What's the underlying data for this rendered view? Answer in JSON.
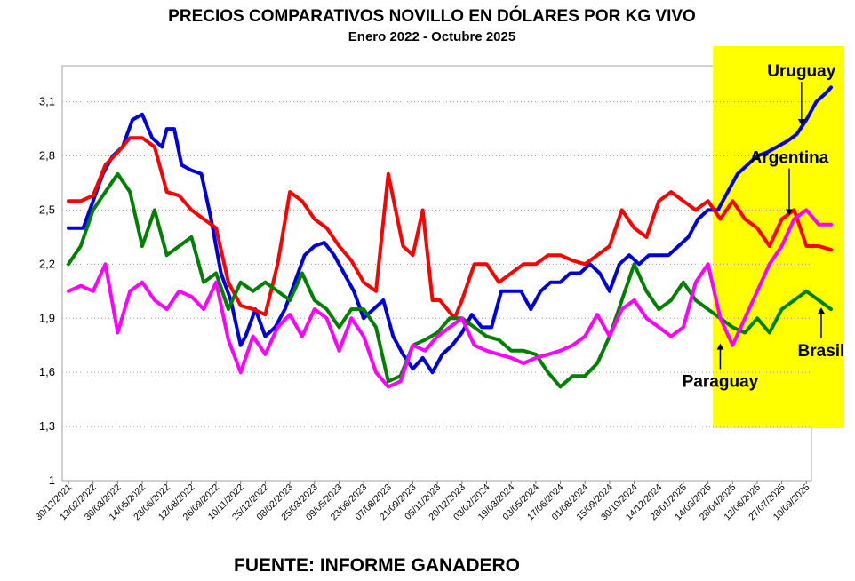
{
  "chart_data": {
    "type": "line",
    "title": "PRECIOS COMPARATIVOS NOVILLO EN DÓLARES POR KG  VIVO",
    "subtitle": "Enero  2022 -  Octubre 2025",
    "source": "FUENTE:  INFORME GANADERO",
    "ylim": [
      1.0,
      3.3
    ],
    "y_ticks": [
      "1",
      "1,3",
      "1,6",
      "1,9",
      "2,2",
      "2,5",
      "2,8",
      "3,1"
    ],
    "y_tick_values": [
      1.0,
      1.3,
      1.6,
      1.9,
      2.2,
      2.5,
      2.8,
      3.1
    ],
    "x_tick_labels": [
      "30/12/2021",
      "13/02/2022",
      "30/03/2022",
      "14/05/2022",
      "28/06/2022",
      "12/08/2022",
      "26/09/2022",
      "10/11/2022",
      "25/12/2022",
      "08/02/2023",
      "25/03/2023",
      "09/05/2023",
      "23/06/2023",
      "07/08/2023",
      "21/09/2023",
      "05/11/2023",
      "20/12/2023",
      "03/02/2024",
      "19/03/2024",
      "03/05/2024",
      "17/06/2024",
      "01/08/2024",
      "15/09/2024",
      "30/10/2024",
      "14/12/2024",
      "28/01/2025",
      "14/03/2025",
      "28/04/2025",
      "12/06/2025",
      "27/07/2025",
      "10/09/2025"
    ],
    "grid": true,
    "highlight_region": {
      "x_from": 26.2,
      "x_to": 31.0,
      "color": "#ffff00"
    },
    "series": [
      {
        "name": "Uruguay",
        "color": "#0000dd",
        "x": [
          0,
          0.6,
          1,
          1.4,
          1.8,
          2.2,
          2.6,
          3.0,
          3.4,
          3.8,
          4.0,
          4.3,
          4.6,
          5.0,
          5.4,
          5.8,
          6.2,
          6.6,
          7.0,
          7.2,
          7.6,
          8.0,
          8.4,
          8.8,
          9.2,
          9.6,
          10.0,
          10.4,
          10.8,
          11.2,
          11.6,
          12.0,
          12.4,
          12.8,
          13.2,
          13.6,
          14.0,
          14.4,
          14.8,
          15.2,
          15.6,
          16.0,
          16.4,
          16.8,
          17.2,
          17.6,
          18.0,
          18.4,
          18.8,
          19.2,
          19.6,
          20.0,
          20.4,
          20.8,
          21.2,
          21.6,
          22.0,
          22.4,
          22.8,
          23.2,
          23.6,
          24.0,
          24.4,
          24.8,
          25.2,
          25.6,
          26.0,
          26.4,
          26.8,
          27.2,
          27.6,
          28.0,
          28.4,
          28.8,
          29.2,
          29.6,
          30.0,
          30.4,
          30.8,
          31.0
        ],
        "y": [
          2.4,
          2.4,
          2.55,
          2.7,
          2.8,
          2.85,
          3.0,
          3.03,
          2.9,
          2.85,
          2.95,
          2.95,
          2.75,
          2.72,
          2.7,
          2.45,
          2.15,
          2.0,
          1.75,
          1.8,
          1.95,
          1.8,
          1.85,
          1.95,
          2.1,
          2.25,
          2.3,
          2.32,
          2.25,
          2.15,
          2.05,
          1.9,
          1.95,
          2.0,
          1.8,
          1.7,
          1.62,
          1.68,
          1.6,
          1.7,
          1.75,
          1.82,
          1.92,
          1.85,
          1.85,
          2.05,
          2.05,
          2.05,
          1.95,
          2.05,
          2.1,
          2.1,
          2.15,
          2.15,
          2.2,
          2.15,
          2.05,
          2.2,
          2.25,
          2.2,
          2.25,
          2.25,
          2.25,
          2.3,
          2.35,
          2.45,
          2.5,
          2.5,
          2.6,
          2.7,
          2.75,
          2.8,
          2.82,
          2.85,
          2.88,
          2.92,
          3.0,
          3.1,
          3.15,
          3.18
        ]
      },
      {
        "name": "Argentina",
        "color": "#ff0000",
        "x": [
          0,
          0.5,
          1,
          1.5,
          2.0,
          2.5,
          3.0,
          3.5,
          4.0,
          4.5,
          5.0,
          5.5,
          6.0,
          6.5,
          7.0,
          7.5,
          8.0,
          8.5,
          9.0,
          9.5,
          10.0,
          10.5,
          11.0,
          11.5,
          12.0,
          12.5,
          13.0,
          13.3,
          13.6,
          14.0,
          14.4,
          14.8,
          15.1,
          15.4,
          15.7,
          16.0,
          16.5,
          17.0,
          17.5,
          18.0,
          18.5,
          19.0,
          19.5,
          20.0,
          20.5,
          21.0,
          21.5,
          22.0,
          22.5,
          23.0,
          23.5,
          24.0,
          24.5,
          25.0,
          25.5,
          26.0,
          26.5,
          27.0,
          27.5,
          28.0,
          28.5,
          29.0,
          29.5,
          30.0,
          30.5,
          31.0
        ],
        "y": [
          2.55,
          2.55,
          2.58,
          2.75,
          2.82,
          2.9,
          2.9,
          2.85,
          2.6,
          2.58,
          2.5,
          2.45,
          2.4,
          2.1,
          1.97,
          1.95,
          1.92,
          2.2,
          2.6,
          2.55,
          2.45,
          2.4,
          2.3,
          2.22,
          2.1,
          2.05,
          2.7,
          2.5,
          2.3,
          2.25,
          2.5,
          2.0,
          2.0,
          1.95,
          1.9,
          2.0,
          2.2,
          2.2,
          2.1,
          2.15,
          2.2,
          2.2,
          2.25,
          2.25,
          2.22,
          2.2,
          2.25,
          2.3,
          2.5,
          2.4,
          2.35,
          2.55,
          2.6,
          2.55,
          2.5,
          2.55,
          2.45,
          2.55,
          2.45,
          2.4,
          2.3,
          2.45,
          2.5,
          2.3,
          2.3,
          2.28
        ]
      },
      {
        "name": "Brasil",
        "color": "#008000",
        "x": [
          0,
          0.5,
          1.0,
          1.5,
          2.0,
          2.5,
          3.0,
          3.5,
          4.0,
          4.5,
          5.0,
          5.5,
          6.0,
          6.5,
          7.0,
          7.5,
          8.0,
          8.5,
          9.0,
          9.5,
          10.0,
          10.5,
          11.0,
          11.5,
          12.0,
          12.5,
          13.0,
          13.5,
          14.0,
          14.5,
          15.0,
          15.5,
          16.0,
          16.5,
          17.0,
          17.5,
          18.0,
          18.5,
          19.0,
          19.5,
          20.0,
          20.5,
          21.0,
          21.5,
          22.0,
          22.5,
          23.0,
          23.5,
          24.0,
          24.5,
          25.0,
          25.5,
          26.0,
          26.5,
          27.0,
          27.5,
          28.0,
          28.5,
          29.0,
          29.5,
          30.0,
          30.5,
          31.0
        ],
        "y": [
          2.2,
          2.3,
          2.5,
          2.6,
          2.7,
          2.6,
          2.3,
          2.5,
          2.25,
          2.3,
          2.35,
          2.1,
          2.15,
          1.95,
          2.1,
          2.05,
          2.1,
          2.05,
          2.0,
          2.15,
          2.0,
          1.95,
          1.85,
          1.95,
          1.95,
          1.85,
          1.55,
          1.58,
          1.75,
          1.78,
          1.82,
          1.9,
          1.9,
          1.85,
          1.8,
          1.78,
          1.72,
          1.72,
          1.7,
          1.6,
          1.52,
          1.58,
          1.58,
          1.65,
          1.8,
          2.0,
          2.2,
          2.05,
          1.95,
          2.0,
          2.1,
          2.0,
          1.95,
          1.9,
          1.85,
          1.82,
          1.9,
          1.82,
          1.95,
          2.0,
          2.05,
          2.0,
          1.95
        ]
      },
      {
        "name": "Paraguay",
        "color": "#ff00ff",
        "x": [
          0,
          0.5,
          1.0,
          1.5,
          2.0,
          2.5,
          3.0,
          3.5,
          4.0,
          4.5,
          5.0,
          5.5,
          6.0,
          6.5,
          7.0,
          7.5,
          8.0,
          8.5,
          9.0,
          9.5,
          10.0,
          10.5,
          11.0,
          11.5,
          12.0,
          12.5,
          13.0,
          13.5,
          14.0,
          14.5,
          15.0,
          15.5,
          16.0,
          16.5,
          17.0,
          17.5,
          18.0,
          18.5,
          19.0,
          19.5,
          20.0,
          20.5,
          21.0,
          21.5,
          22.0,
          22.5,
          23.0,
          23.5,
          24.0,
          24.5,
          25.0,
          25.5,
          26.0,
          26.5,
          27.0,
          27.5,
          28.0,
          28.5,
          29.0,
          29.5,
          30.0,
          30.5,
          31.0
        ],
        "y": [
          2.05,
          2.08,
          2.05,
          2.2,
          1.82,
          2.05,
          2.1,
          2.0,
          1.95,
          2.05,
          2.02,
          1.95,
          2.1,
          1.78,
          1.6,
          1.8,
          1.7,
          1.85,
          1.92,
          1.8,
          1.95,
          1.9,
          1.72,
          1.9,
          1.8,
          1.6,
          1.52,
          1.55,
          1.75,
          1.72,
          1.8,
          1.85,
          1.9,
          1.75,
          1.72,
          1.7,
          1.68,
          1.65,
          1.68,
          1.7,
          1.72,
          1.75,
          1.8,
          1.92,
          1.8,
          1.95,
          2.0,
          1.9,
          1.85,
          1.8,
          1.85,
          2.1,
          2.2,
          1.9,
          1.75,
          1.9,
          2.05,
          2.2,
          2.3,
          2.45,
          2.5,
          2.42,
          2.42
        ]
      }
    ],
    "annotations": [
      {
        "label": "Uruguay",
        "x": 29.8,
        "y": 3.24,
        "arrow_to_y": 2.97
      },
      {
        "label": "Argentina",
        "x": 29.3,
        "y": 2.76,
        "arrow_to_y": 2.47
      },
      {
        "label": "Brasil",
        "x": 30.6,
        "y": 1.69,
        "arrow_to_y": 1.96
      },
      {
        "label": "Paraguay",
        "x": 26.5,
        "y": 1.52,
        "arrow_to_y": 1.76
      }
    ]
  }
}
